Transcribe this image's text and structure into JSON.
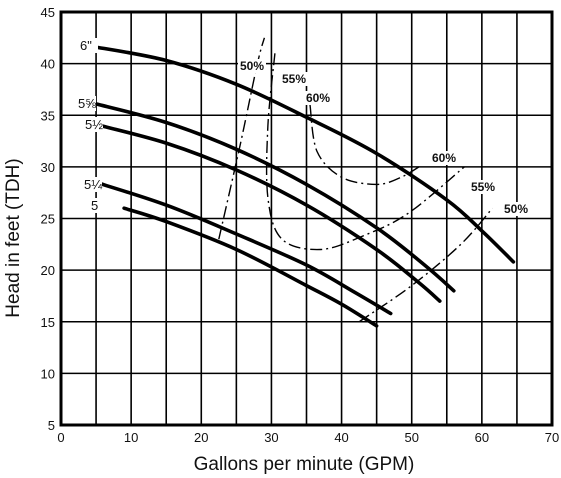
{
  "chart_data": {
    "type": "line",
    "xlabel": "Gallons per minute (GPM)",
    "ylabel": "Head in feet (TDH)",
    "xlim": [
      0,
      70
    ],
    "ylim": [
      5,
      45
    ],
    "x_ticks": [
      0,
      10,
      20,
      30,
      40,
      50,
      60,
      70
    ],
    "y_ticks": [
      5,
      10,
      15,
      20,
      25,
      30,
      35,
      40,
      45
    ],
    "grid": true,
    "series": [
      {
        "name": "6\"",
        "points": [
          [
            5,
            41.6
          ],
          [
            15,
            40.3
          ],
          [
            25,
            38.0
          ],
          [
            35,
            34.8
          ],
          [
            45,
            31.3
          ],
          [
            55,
            26.8
          ],
          [
            60,
            23.8
          ],
          [
            64.5,
            20.8
          ]
        ]
      },
      {
        "name": "5⅝",
        "points": [
          [
            5,
            36.1
          ],
          [
            15,
            34.3
          ],
          [
            25,
            31.7
          ],
          [
            35,
            28.3
          ],
          [
            45,
            24.1
          ],
          [
            52,
            20.4
          ],
          [
            56,
            18.0
          ]
        ]
      },
      {
        "name": "5½",
        "points": [
          [
            5,
            34.1
          ],
          [
            15,
            32.3
          ],
          [
            25,
            29.7
          ],
          [
            35,
            26.3
          ],
          [
            45,
            22.0
          ],
          [
            51,
            18.8
          ],
          [
            54,
            17.0
          ]
        ]
      },
      {
        "name": "5¼",
        "points": [
          [
            5,
            28.5
          ],
          [
            15,
            26.3
          ],
          [
            25,
            23.5
          ],
          [
            35,
            20.5
          ],
          [
            42,
            17.8
          ],
          [
            47,
            15.8
          ]
        ]
      },
      {
        "name": "5",
        "points": [
          [
            9,
            26.0
          ],
          [
            15,
            24.7
          ],
          [
            25,
            22.0
          ],
          [
            35,
            18.5
          ],
          [
            40,
            16.7
          ],
          [
            45,
            14.6
          ]
        ]
      }
    ],
    "efficiency_contours": [
      {
        "label": "50%",
        "points": [
          [
            22.5,
            23.0
          ],
          [
            25.5,
            32.0
          ],
          [
            28.0,
            40.0
          ],
          [
            29.0,
            42.5
          ]
        ]
      },
      {
        "label": "55%",
        "points": [
          [
            30.5,
            41.0
          ],
          [
            29.5,
            34.0
          ],
          [
            29.5,
            27.0
          ],
          [
            31.5,
            23.0
          ],
          [
            37.0,
            22.0
          ],
          [
            43.0,
            23.3
          ],
          [
            49.5,
            25.5
          ],
          [
            57.5,
            30.0
          ]
        ]
      },
      {
        "label": "60%",
        "points": [
          [
            35.5,
            36.0
          ],
          [
            36.5,
            31.5
          ],
          [
            40.0,
            29.0
          ],
          [
            45.0,
            28.3
          ],
          [
            48.5,
            29.0
          ],
          [
            51.5,
            30.2
          ]
        ]
      },
      {
        "label": "50%",
        "points": [
          [
            42.5,
            15.0
          ],
          [
            50.0,
            18.5
          ],
          [
            57.0,
            22.5
          ],
          [
            61.5,
            26.0
          ]
        ]
      }
    ],
    "curve_labels": [
      "6\"",
      "5⅝",
      "5½",
      "5¼",
      "5"
    ],
    "efficiency_labels": [
      "50%",
      "55%",
      "60%",
      "60%",
      "55%",
      "50%"
    ]
  }
}
